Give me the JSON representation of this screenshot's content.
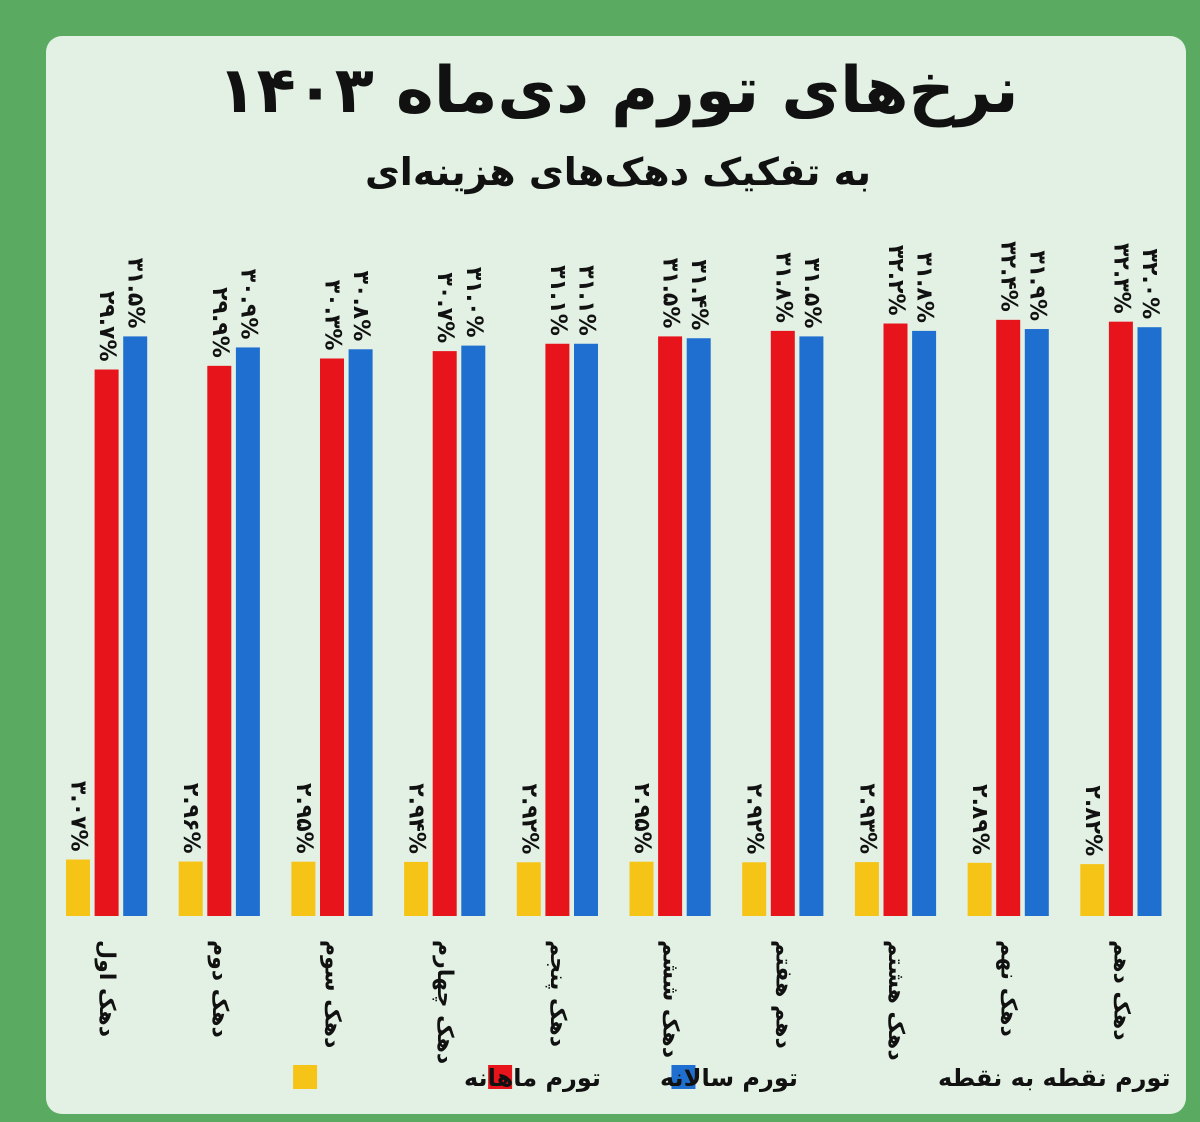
{
  "chart_data": {
    "type": "bar",
    "title": "نرخ‌های تورم دی‌ماه ۱۴۰۳",
    "subtitle": "به تفکیک دهک‌های هزینه‌ای",
    "categories": [
      "دهک اول",
      "دهک دوم",
      "دهک سوم",
      "دهک چهارم",
      "دهک پنجم",
      "دهک ششم",
      "دهم هفتم",
      "دهک هشتم",
      "دهک نهم",
      "دهک دهم"
    ],
    "series": [
      {
        "name": "تورم ماهانه",
        "color": "#f5c417",
        "values": [
          3.07,
          2.96,
          2.95,
          2.94,
          2.92,
          2.95,
          2.92,
          2.93,
          2.89,
          2.82
        ],
        "labels": [
          "۳.۰۷%",
          "۲.۹۶%",
          "۲.۹۵%",
          "۲.۹۴%",
          "۲.۹۲%",
          "۲.۹۵%",
          "۲.۹۲%",
          "۲.۹۳%",
          "۲.۸۹%",
          "۲.۸۲%"
        ]
      },
      {
        "name": "تورم سالانه",
        "color": "#e8141b",
        "values": [
          29.7,
          29.9,
          30.3,
          30.7,
          31.1,
          31.5,
          31.8,
          32.2,
          32.4,
          32.3
        ],
        "labels": [
          "۲۹.۷%",
          "۲۹.۹%",
          "۳۰.۳%",
          "۳۰.۷%",
          "۳۱.۱%",
          "۳۱.۵%",
          "۳۱.۸%",
          "۳۲.۲%",
          "۳۲.۴%",
          "۳۲.۳%"
        ]
      },
      {
        "name": "تورم نقطه به نقطه",
        "color": "#1f6fd0",
        "values": [
          31.5,
          30.9,
          30.8,
          31.0,
          31.1,
          31.4,
          31.5,
          31.8,
          31.9,
          32.0
        ],
        "labels": [
          "۳۱.۵%",
          "۳۰.۹%",
          "۳۰.۸%",
          "۳۱.۰%",
          "۳۱.۱%",
          "۳۱.۴%",
          "۳۱.۵%",
          "۳۱.۸%",
          "۳۱.۹%",
          "۳۲.۰%"
        ]
      }
    ],
    "legend_order": [
      2,
      1,
      0
    ],
    "legend_position": "bottom"
  }
}
